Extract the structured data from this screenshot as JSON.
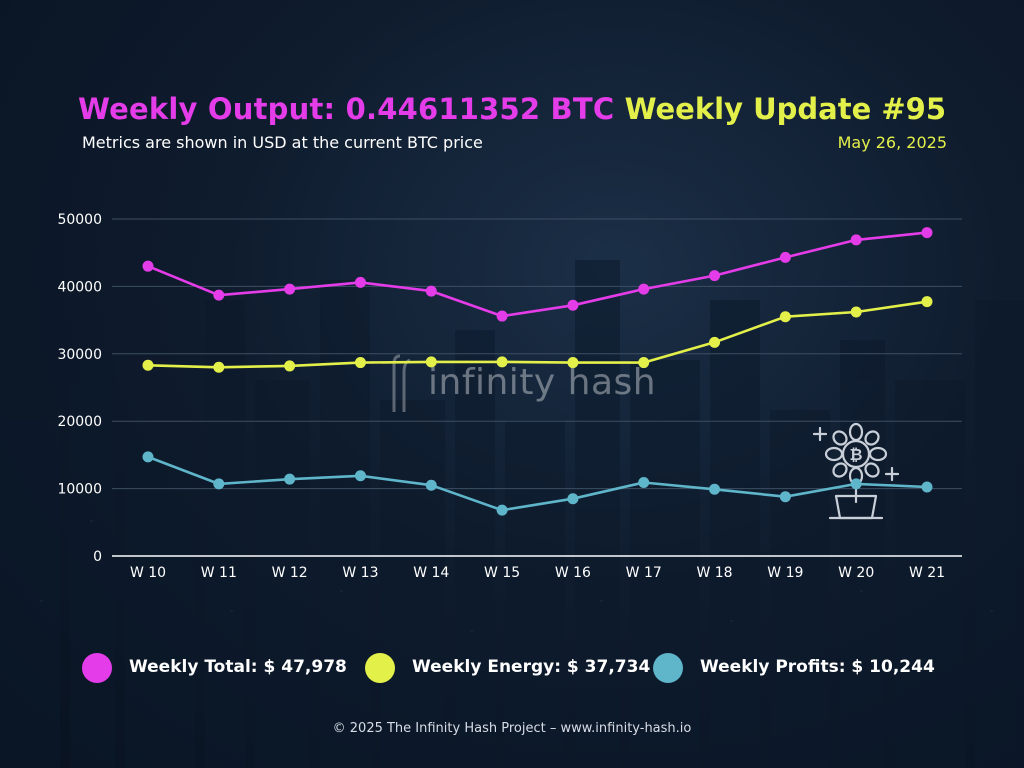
{
  "header": {
    "output_title": "Weekly Output: 0.44611352 BTC",
    "subtitle": "Metrics are shown in USD at the current BTC price",
    "update_title": "Weekly Update #95",
    "date": "May 26, 2025"
  },
  "brand": {
    "watermark": "infinity hash",
    "watermark_icon": "infinity-hash-logo-icon"
  },
  "decor_icon": "bitcoin-plant-icon",
  "colors": {
    "total": "#e43ce8",
    "energy": "#e4f04a",
    "profits": "#5fb5c9",
    "grid": "#3d4e63",
    "axis": "#ffffff"
  },
  "chart_data": {
    "type": "line",
    "categories": [
      "W 10",
      "W 11",
      "W 12",
      "W 13",
      "W 14",
      "W 15",
      "W 16",
      "W 17",
      "W 18",
      "W 19",
      "W 20",
      "W 21"
    ],
    "ylim": [
      0,
      50000
    ],
    "yticks": [
      "0",
      "10000",
      "20000",
      "30000",
      "40000",
      "50000"
    ],
    "grid": true,
    "legend_position": "bottom",
    "series": [
      {
        "name": "Weekly Total",
        "color": "#e43ce8",
        "values": [
          43000,
          38700,
          39600,
          40600,
          39300,
          35600,
          37200,
          39600,
          41600,
          44300,
          46900,
          47978
        ]
      },
      {
        "name": "Weekly Energy",
        "color": "#e4f04a",
        "values": [
          28300,
          28000,
          28200,
          28700,
          28800,
          28800,
          28700,
          28700,
          31700,
          35500,
          36200,
          37734
        ]
      },
      {
        "name": "Weekly Profits",
        "color": "#5fb5c9",
        "values": [
          14700,
          10700,
          11400,
          11900,
          10500,
          6800,
          8500,
          10900,
          9900,
          8800,
          10700,
          10244
        ]
      }
    ]
  },
  "legend": [
    {
      "label": "Weekly Total: $ 47,978",
      "color": "#e43ce8"
    },
    {
      "label": "Weekly Energy: $ 37,734",
      "color": "#e4f04a"
    },
    {
      "label": "Weekly Profits: $ 10,244",
      "color": "#5fb5c9"
    }
  ],
  "footer": "© 2025 The Infinity Hash Project – www.infinity-hash.io"
}
